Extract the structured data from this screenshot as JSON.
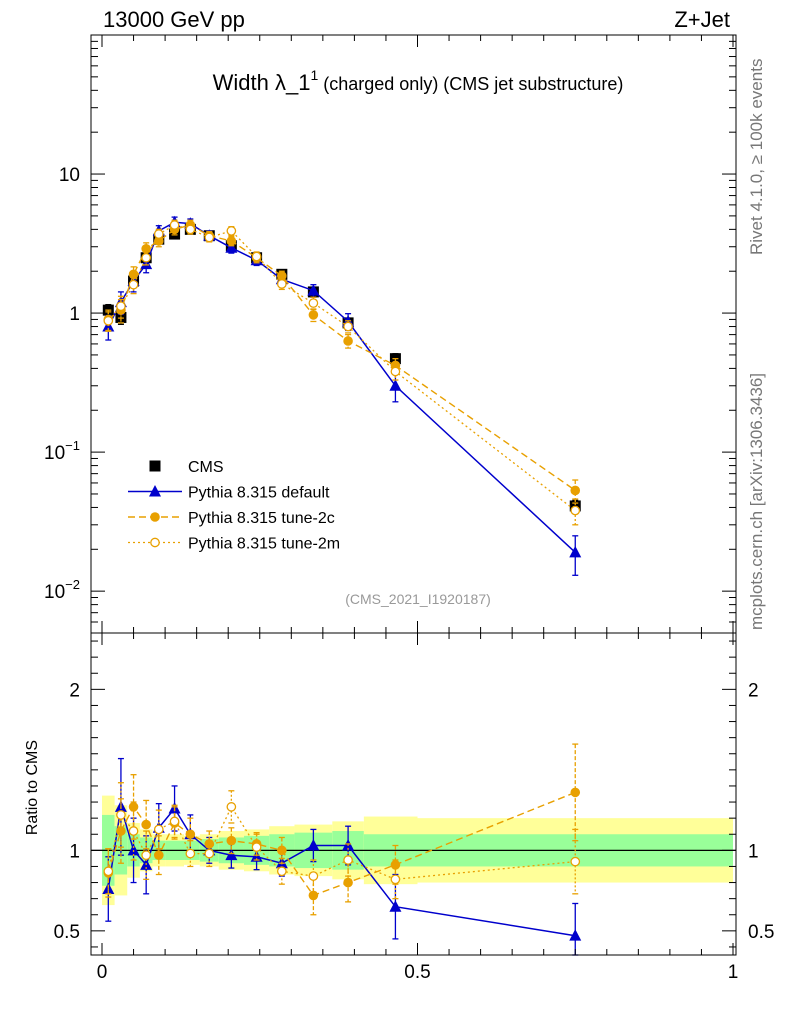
{
  "header": {
    "left": "13000 GeV pp",
    "right": "Z+Jet"
  },
  "side_label_top": "Rivet 4.1.0, ≥ 100k events",
  "side_label_bottom": "mcplots.cern.ch [arXiv:1306.3436]",
  "plot_title": {
    "main": "Width λ_1",
    "sup": "1",
    "rest": " (charged only) (CMS jet substructure)"
  },
  "analysis_id": "(CMS_2021_I1920187)",
  "colors": {
    "cms": "#000000",
    "default": "#0000cc",
    "tune2c": "#e8a000",
    "tune2m": "#e8a000",
    "band_inner": "#99ff99",
    "band_outer": "#ffff99"
  },
  "chart_data": [
    {
      "name": "main",
      "type": "scatter",
      "yscale": "log",
      "xlim": [
        0,
        1
      ],
      "ylim": [
        0.005,
        100
      ],
      "y_ticks": [
        {
          "value": 0.01,
          "base": "10",
          "exp": "−2"
        },
        {
          "value": 0.1,
          "base": "10",
          "exp": "−1"
        },
        {
          "value": 1,
          "base": "1",
          "exp": ""
        },
        {
          "value": 10,
          "base": "10",
          "exp": ""
        }
      ],
      "legend": {
        "position": "bottom-left",
        "entries": [
          "CMS",
          "Pythia 8.315 default",
          "Pythia 8.315 tune-2c",
          "Pythia 8.315 tune-2m"
        ]
      },
      "series": [
        {
          "name": "CMS",
          "x": [
            0.01,
            0.03,
            0.05,
            0.07,
            0.09,
            0.115,
            0.14,
            0.17,
            0.205,
            0.245,
            0.285,
            0.335,
            0.39,
            0.465,
            0.75
          ],
          "y": [
            1.05,
            0.93,
            1.7,
            2.5,
            3.4,
            3.7,
            4.0,
            3.6,
            3.05,
            2.5,
            1.9,
            1.42,
            0.85,
            0.47,
            0.041
          ],
          "yerr": [
            0.1,
            0.1,
            0.12,
            0.15,
            0.18,
            0.18,
            0.2,
            0.18,
            0.15,
            0.12,
            0.1,
            0.08,
            0.06,
            0.04,
            0.004
          ]
        },
        {
          "name": "Pythia 8.315 default",
          "x": [
            0.01,
            0.03,
            0.05,
            0.07,
            0.09,
            0.115,
            0.14,
            0.17,
            0.205,
            0.245,
            0.285,
            0.335,
            0.39,
            0.465,
            0.75
          ],
          "y": [
            0.8,
            1.2,
            1.7,
            2.25,
            3.9,
            4.5,
            4.4,
            3.6,
            2.95,
            2.4,
            1.75,
            1.45,
            0.87,
            0.3,
            0.019
          ],
          "yerr": [
            0.16,
            0.22,
            0.28,
            0.3,
            0.35,
            0.4,
            0.35,
            0.28,
            0.25,
            0.2,
            0.16,
            0.15,
            0.12,
            0.07,
            0.006
          ]
        },
        {
          "name": "Pythia 8.315 tune-2c",
          "x": [
            0.01,
            0.03,
            0.05,
            0.07,
            0.09,
            0.115,
            0.14,
            0.17,
            0.205,
            0.245,
            0.285,
            0.335,
            0.39,
            0.465,
            0.75
          ],
          "y": [
            0.9,
            1.05,
            1.9,
            2.9,
            3.3,
            4.0,
            4.3,
            3.6,
            3.3,
            2.5,
            1.85,
            0.97,
            0.63,
            0.42,
            0.053
          ],
          "yerr": [
            0.15,
            0.2,
            0.25,
            0.3,
            0.3,
            0.35,
            0.35,
            0.25,
            0.25,
            0.2,
            0.15,
            0.1,
            0.07,
            0.05,
            0.01
          ]
        },
        {
          "name": "Pythia 8.315 tune-2m",
          "x": [
            0.01,
            0.03,
            0.05,
            0.07,
            0.09,
            0.115,
            0.14,
            0.17,
            0.205,
            0.245,
            0.285,
            0.335,
            0.39,
            0.465,
            0.75
          ],
          "y": [
            0.88,
            1.12,
            1.6,
            2.5,
            3.7,
            4.3,
            4.0,
            3.5,
            3.9,
            2.55,
            1.62,
            1.18,
            0.8,
            0.38,
            0.038
          ],
          "yerr": [
            0.14,
            0.2,
            0.22,
            0.28,
            0.3,
            0.35,
            0.3,
            0.25,
            0.28,
            0.2,
            0.14,
            0.12,
            0.08,
            0.05,
            0.008
          ]
        }
      ]
    },
    {
      "name": "ratio",
      "type": "scatter",
      "ylabel": "Ratio to CMS",
      "xlim": [
        0,
        1
      ],
      "ylim": [
        0.35,
        2.35
      ],
      "x_ticks": [
        {
          "value": 0,
          "label": "0"
        },
        {
          "value": 0.5,
          "label": "0.5"
        },
        {
          "value": 1,
          "label": "1"
        }
      ],
      "y_ticks": [
        {
          "value": 0.5,
          "label": "0.5"
        },
        {
          "value": 1,
          "label": "1"
        },
        {
          "value": 2,
          "label": "2"
        }
      ],
      "bins": [
        0,
        0.02,
        0.04,
        0.06,
        0.08,
        0.1,
        0.13,
        0.155,
        0.185,
        0.225,
        0.265,
        0.305,
        0.365,
        0.415,
        0.5,
        1.0
      ],
      "band_inner": [
        [
          0.78,
          1.22
        ],
        [
          0.85,
          1.15
        ],
        [
          0.9,
          1.1
        ],
        [
          0.92,
          1.08
        ],
        [
          0.94,
          1.06
        ],
        [
          0.94,
          1.06
        ],
        [
          0.94,
          1.06
        ],
        [
          0.93,
          1.07
        ],
        [
          0.92,
          1.08
        ],
        [
          0.91,
          1.09
        ],
        [
          0.9,
          1.1
        ],
        [
          0.89,
          1.11
        ],
        [
          0.88,
          1.12
        ],
        [
          0.9,
          1.1
        ],
        [
          0.9,
          1.1
        ]
      ],
      "band_outer": [
        [
          0.66,
          1.34
        ],
        [
          0.72,
          1.28
        ],
        [
          0.83,
          1.17
        ],
        [
          0.87,
          1.13
        ],
        [
          0.9,
          1.1
        ],
        [
          0.9,
          1.1
        ],
        [
          0.91,
          1.09
        ],
        [
          0.9,
          1.1
        ],
        [
          0.88,
          1.12
        ],
        [
          0.87,
          1.13
        ],
        [
          0.85,
          1.15
        ],
        [
          0.84,
          1.16
        ],
        [
          0.82,
          1.18
        ],
        [
          0.79,
          1.21
        ],
        [
          0.8,
          1.2
        ]
      ],
      "series": [
        {
          "name": "Pythia 8.315 default",
          "x": [
            0.01,
            0.03,
            0.05,
            0.07,
            0.09,
            0.115,
            0.14,
            0.17,
            0.205,
            0.245,
            0.285,
            0.335,
            0.39,
            0.465,
            0.75
          ],
          "y": [
            0.76,
            1.27,
            1.0,
            0.91,
            1.14,
            1.26,
            1.1,
            1.0,
            0.97,
            0.96,
            0.92,
            1.03,
            1.03,
            0.65,
            0.47
          ],
          "yerr": [
            0.2,
            0.3,
            0.2,
            0.18,
            0.15,
            0.14,
            0.12,
            0.08,
            0.08,
            0.08,
            0.08,
            0.1,
            0.12,
            0.2,
            0.2
          ]
        },
        {
          "name": "Pythia 8.315 tune-2c",
          "x": [
            0.01,
            0.03,
            0.05,
            0.07,
            0.09,
            0.115,
            0.14,
            0.17,
            0.205,
            0.245,
            0.285,
            0.335,
            0.39,
            0.465,
            0.75
          ],
          "y": [
            0.86,
            1.12,
            1.27,
            1.16,
            0.97,
            1.17,
            1.1,
            1.04,
            1.06,
            1.04,
            1.0,
            0.72,
            0.8,
            0.91,
            1.36
          ],
          "yerr": [
            0.15,
            0.2,
            0.2,
            0.15,
            0.12,
            0.1,
            0.1,
            0.08,
            0.08,
            0.07,
            0.08,
            0.12,
            0.12,
            0.12,
            0.3
          ]
        },
        {
          "name": "Pythia 8.315 tune-2m",
          "x": [
            0.01,
            0.03,
            0.05,
            0.07,
            0.09,
            0.115,
            0.14,
            0.17,
            0.205,
            0.245,
            0.285,
            0.335,
            0.39,
            0.465,
            0.75
          ],
          "y": [
            0.87,
            1.22,
            1.12,
            0.97,
            1.13,
            1.18,
            0.98,
            0.98,
            1.27,
            1.02,
            0.87,
            0.84,
            0.94,
            0.82,
            0.93
          ],
          "yerr": [
            0.14,
            0.2,
            0.18,
            0.15,
            0.12,
            0.1,
            0.08,
            0.08,
            0.1,
            0.08,
            0.08,
            0.1,
            0.1,
            0.12,
            0.2
          ]
        }
      ]
    }
  ]
}
